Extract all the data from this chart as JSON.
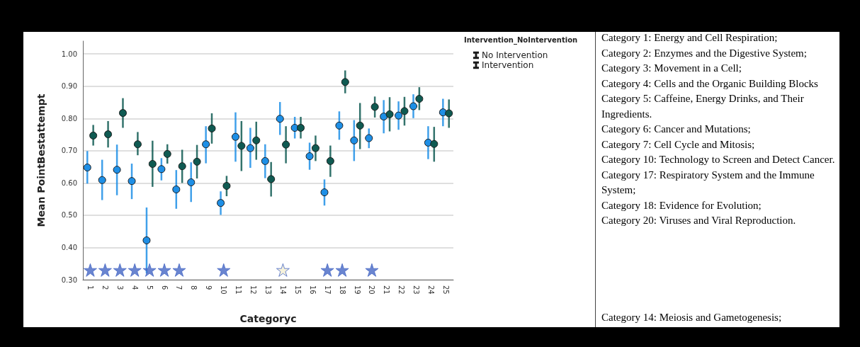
{
  "chart_data": {
    "type": "scatter",
    "xlabel": "Categoryc",
    "ylabel": "Mean PointBestattempt",
    "legend_title": "Intervention_NoIntervention",
    "categories": [
      "1",
      "2",
      "3",
      "4",
      "5",
      "6",
      "7",
      "8",
      "9",
      "10",
      "11",
      "12",
      "13",
      "14",
      "15",
      "16",
      "17",
      "18",
      "19",
      "20",
      "21",
      "22",
      "23",
      "24",
      "25"
    ],
    "series": [
      {
        "name": "No Intervention",
        "color": "#1e8fe6",
        "values": [
          0.648,
          0.609,
          0.641,
          0.606,
          0.422,
          0.643,
          0.58,
          0.602,
          0.72,
          0.538,
          0.743,
          0.708,
          0.668,
          0.799,
          0.771,
          0.683,
          0.571,
          0.778,
          0.732,
          0.739,
          0.806,
          0.809,
          0.838,
          0.725,
          0.819
        ],
        "errors": [
          [
            0.598,
            0.699
          ],
          [
            0.547,
            0.672
          ],
          [
            0.562,
            0.719
          ],
          [
            0.55,
            0.66
          ],
          [
            0.32,
            0.524
          ],
          [
            0.608,
            0.677
          ],
          [
            0.52,
            0.64
          ],
          [
            0.541,
            0.664
          ],
          [
            0.661,
            0.776
          ],
          [
            0.501,
            0.574
          ],
          [
            0.666,
            0.819
          ],
          [
            0.647,
            0.771
          ],
          [
            0.615,
            0.72
          ],
          [
            0.749,
            0.851
          ],
          [
            0.738,
            0.805
          ],
          [
            0.641,
            0.725
          ],
          [
            0.53,
            0.611
          ],
          [
            0.734,
            0.822
          ],
          [
            0.668,
            0.795
          ],
          [
            0.708,
            0.769
          ],
          [
            0.754,
            0.857
          ],
          [
            0.765,
            0.853
          ],
          [
            0.801,
            0.875
          ],
          [
            0.674,
            0.776
          ],
          [
            0.776,
            0.861
          ]
        ]
      },
      {
        "name": "Intervention",
        "color": "#0f5a52",
        "values": [
          0.747,
          0.751,
          0.817,
          0.72,
          0.659,
          0.69,
          0.652,
          0.666,
          0.769,
          0.591,
          0.715,
          0.732,
          0.612,
          0.719,
          0.771,
          0.708,
          0.668,
          0.913,
          0.778,
          0.836,
          0.813,
          0.823,
          0.861,
          0.721,
          0.816
        ],
        "errors": [
          [
            0.716,
            0.78
          ],
          [
            0.71,
            0.792
          ],
          [
            0.771,
            0.863
          ],
          [
            0.686,
            0.758
          ],
          [
            0.588,
            0.731
          ],
          [
            0.66,
            0.72
          ],
          [
            0.6,
            0.703
          ],
          [
            0.614,
            0.718
          ],
          [
            0.722,
            0.816
          ],
          [
            0.559,
            0.622
          ],
          [
            0.637,
            0.792
          ],
          [
            0.672,
            0.79
          ],
          [
            0.558,
            0.665
          ],
          [
            0.661,
            0.776
          ],
          [
            0.738,
            0.805
          ],
          [
            0.668,
            0.747
          ],
          [
            0.619,
            0.716
          ],
          [
            0.878,
            0.949
          ],
          [
            0.705,
            0.848
          ],
          [
            0.803,
            0.868
          ],
          [
            0.76,
            0.866
          ],
          [
            0.778,
            0.867
          ],
          [
            0.826,
            0.897
          ],
          [
            0.666,
            0.774
          ],
          [
            0.771,
            0.859
          ]
        ]
      },
      {
        "type": "scatter",
        "marker": "star",
        "color": "#4566c4",
        "x": [
          "1",
          "2",
          "3",
          "4",
          "5",
          "6",
          "7",
          "10",
          "14",
          "17",
          "18",
          "20"
        ],
        "values": [
          0.33,
          0.33,
          0.33,
          0.33,
          0.33,
          0.33,
          0.33,
          0.33,
          0.33,
          0.33,
          0.33,
          0.33
        ],
        "colors": [
          "#4566c4",
          "#4566c4",
          "#4566c4",
          "#4566c4",
          "#4566c4",
          "#4566c4",
          "#4566c4",
          "#4566c4",
          "#f4efd2",
          "#4566c4",
          "#4566c4",
          "#4566c4"
        ]
      }
    ],
    "ylim": [
      0.3,
      1.04
    ],
    "yticks": [
      {
        "value": 0.3,
        "label": "0.30"
      },
      {
        "value": 0.4,
        "label": "0.40"
      },
      {
        "value": 0.5,
        "label": "0.50"
      },
      {
        "value": 0.6,
        "label": "0.60"
      },
      {
        "value": 0.7,
        "label": "0.70"
      },
      {
        "value": 0.8,
        "label": "0.80"
      },
      {
        "value": 0.9,
        "label": "0.90"
      },
      {
        "value": 1.0,
        "label": "1.00"
      }
    ],
    "grid": "y",
    "legend": "top right",
    "marker": "circle",
    "annotations": [
      "Category 1: Energy and Cell Respiration;",
      "Category 2: Enzymes and the Digestive System;",
      "Category 3: Movement in a Cell;",
      "Category 4: Cells and the Organic Building Blocks",
      "Category 5: Caffeine, Energy Drinks, and Their Ingredients.",
      "Category 6: Cancer and Mutations;",
      "Category 7: Cell Cycle and Mitosis;",
      "Category 10: Technology to Screen and Detect Cancer.",
      "Category 17: Respiratory System and the Immune System;",
      "Category 18: Evidence for Evolution;",
      "Category 20: Viruses and Viral Reproduction.",
      "Category 14: Meiosis and Gametogenesis;"
    ]
  }
}
